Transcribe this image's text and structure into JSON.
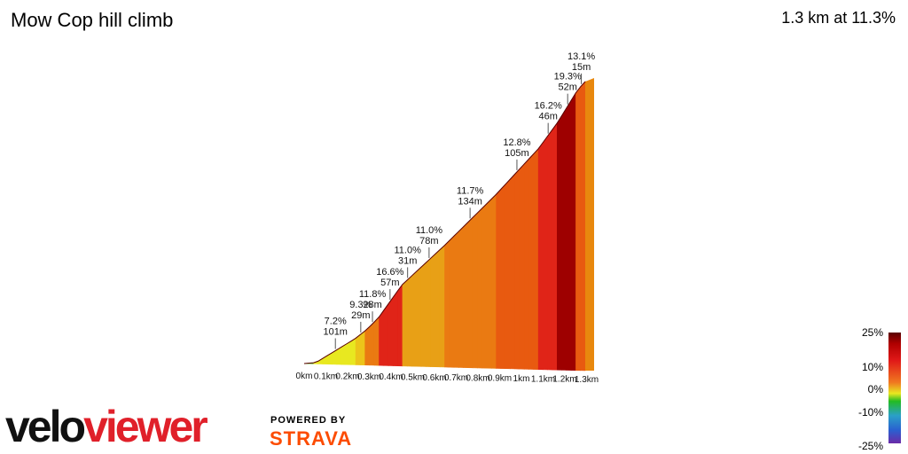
{
  "header": {
    "title": "Mow Cop hill climb",
    "summary": "1.3 km at 11.3%"
  },
  "branding": {
    "logo_text": "veloviewer",
    "powered_by": "POWERED BY",
    "strava": "STRAVA"
  },
  "colors": {
    "very_steep": "#8b0000",
    "steep": "#e01818",
    "moderate": "#f07820",
    "easy": "#e8e820",
    "flat": "#22bb22",
    "strava_orange": "#fc4c02"
  },
  "gradient_scale": {
    "labels": [
      "25%",
      "10%",
      "0%",
      "-10%",
      "-25%"
    ]
  },
  "chart_data": {
    "type": "area",
    "title": "Mow Cop hill climb",
    "xlabel": "",
    "ylabel": "",
    "x_unit": "km",
    "x_ticks": [
      "0km",
      "0.1km",
      "0.2km",
      "0.3km",
      "0.4km",
      "0.5km",
      "0.6km",
      "0.7km",
      "0.8km",
      "0.9km",
      "1km",
      "1.1km",
      "1.2km",
      "1.3km"
    ],
    "xlim": [
      0,
      1.3
    ],
    "segments": [
      {
        "start_km": 0.0,
        "end_km": 0.03,
        "gradient": 1.0
      },
      {
        "start_km": 0.03,
        "end_km": 0.13,
        "gradient": 7.2
      },
      {
        "start_km": 0.13,
        "end_km": 0.16,
        "gradient": 9.3
      },
      {
        "start_km": 0.16,
        "end_km": 0.19,
        "gradient": 11.8
      },
      {
        "start_km": 0.19,
        "end_km": 0.25,
        "gradient": 16.6
      },
      {
        "start_km": 0.25,
        "end_km": 0.28,
        "gradient": 11.0
      },
      {
        "start_km": 0.28,
        "end_km": 0.36,
        "gradient": 11.0
      },
      {
        "start_km": 0.36,
        "end_km": 0.49,
        "gradient": 11.7
      },
      {
        "start_km": 0.49,
        "end_km": 0.6,
        "gradient": 12.8
      },
      {
        "start_km": 0.6,
        "end_km": 0.65,
        "gradient": 16.2
      },
      {
        "start_km": 0.65,
        "end_km": 0.7,
        "gradient": 19.3
      },
      {
        "start_km": 0.7,
        "end_km": 0.72,
        "gradient": 13.1
      }
    ],
    "annotations": [
      {
        "grade": "7.2%",
        "length": "101m",
        "km": 0.08
      },
      {
        "grade": "9.3%",
        "length": "29m",
        "km": 0.145
      },
      {
        "grade": "11.8%",
        "length": "28m",
        "km": 0.175
      },
      {
        "grade": "16.6%",
        "length": "57m",
        "km": 0.22
      },
      {
        "grade": "11.0%",
        "length": "31m",
        "km": 0.265
      },
      {
        "grade": "11.0%",
        "length": "78m",
        "km": 0.32
      },
      {
        "grade": "11.7%",
        "length": "134m",
        "km": 0.425
      },
      {
        "grade": "12.8%",
        "length": "105m",
        "km": 0.545
      },
      {
        "grade": "16.2%",
        "length": "46m",
        "km": 0.625
      },
      {
        "grade": "19.3%",
        "length": "52m",
        "km": 0.675
      },
      {
        "grade": "13.1%",
        "length": "15m",
        "km": 0.71
      }
    ]
  }
}
